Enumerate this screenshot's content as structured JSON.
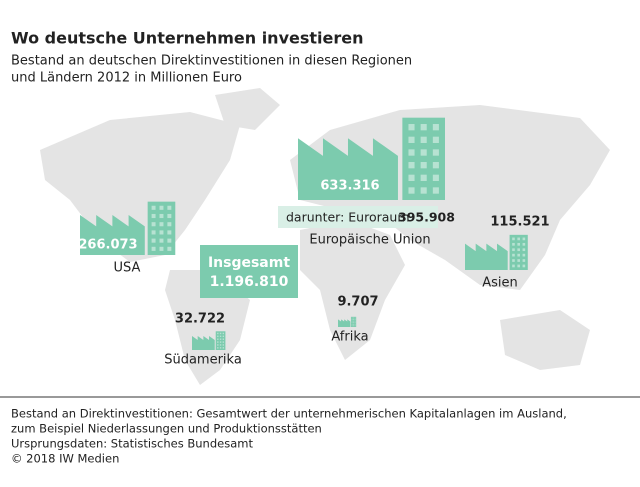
{
  "chart_data": {
    "type": "factory-map",
    "title": "Wo deutsche Unternehmen investieren",
    "subtitle": [
      "Bestand an deutschen Direktinvestitionen in diesen Regionen",
      "und Ländern 2012 in Millionen Euro"
    ],
    "categories": [
      "Europäische Union",
      "USA",
      "Asien",
      "Südamerika",
      "Afrika"
    ],
    "values": [
      633316,
      266073,
      115521,
      32722,
      9707
    ],
    "value_labels": [
      "633.316",
      "266.073",
      "115.521",
      "32.722",
      "9.707"
    ],
    "color": "#7ccbae",
    "total": {
      "label": "Insgesamt",
      "value": 1196810,
      "value_label": "1.196.810"
    },
    "subset": {
      "label": "darunter: Euroraum",
      "value": 395908,
      "value_label": "395.908"
    },
    "notes": [
      "Bestand an Direktinvestitionen: Gesamtwert der unternehmerischen Kapitalanlagen im Ausland,",
      "zum Beispiel Niederlassungen und Produktionsstätten",
      "Ursprungsdaten: Statistisches Bundesamt",
      "© 2018 IW Medien"
    ]
  }
}
